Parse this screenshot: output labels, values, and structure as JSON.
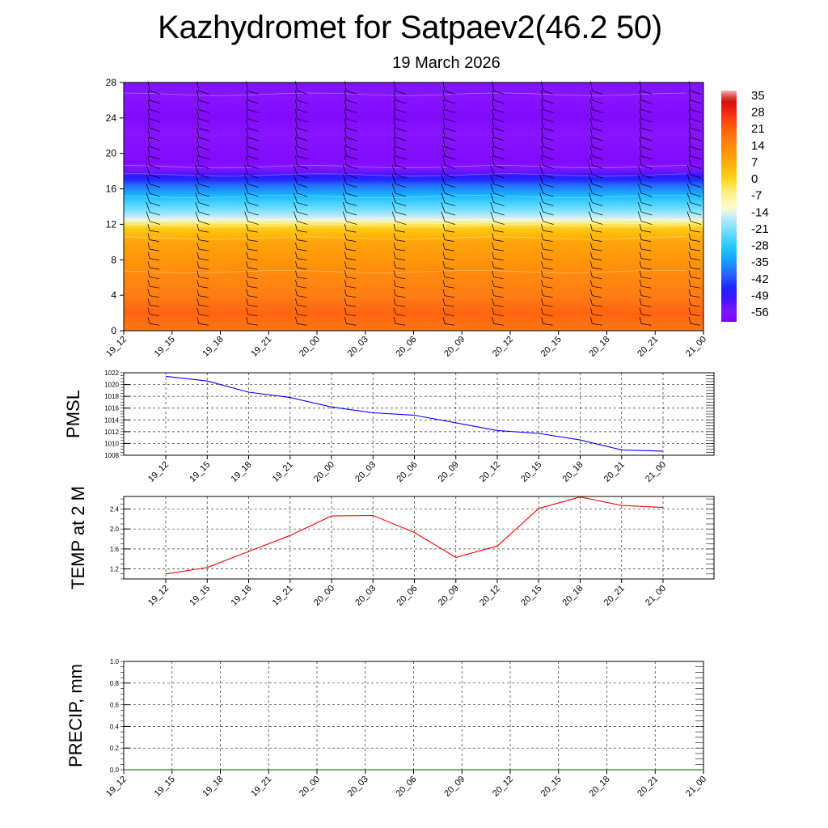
{
  "page": {
    "title": "Kazhydromet for Satpaev2(46.2 50)",
    "subtitle": "19 March 2026"
  },
  "chart_data": [
    {
      "id": "cross-section",
      "type": "heatmap",
      "title": "Kazhydromet for Satpaev2(46.2 50)",
      "subtitle": "19 March 2026",
      "x_labels": [
        "19_12",
        "19_15",
        "19_18",
        "19_21",
        "20_00",
        "20_03",
        "20_06",
        "20_09",
        "20_12",
        "20_15",
        "20_18",
        "20_21",
        "21_00"
      ],
      "ylim": [
        0,
        28
      ],
      "y_ticks": [
        0,
        4,
        8,
        12,
        16,
        20,
        24,
        28
      ],
      "colorbar_labels": [
        "35",
        "28",
        "21",
        "14",
        "7",
        "0",
        "-7",
        "-14",
        "-21",
        "-28",
        "-35",
        "-42",
        "-49",
        "-56"
      ],
      "colorbar_range": [
        -60,
        38
      ],
      "temperature_profile": [
        {
          "h": 0,
          "t": 18
        },
        {
          "h": 2,
          "t": 21
        },
        {
          "h": 4,
          "t": 17
        },
        {
          "h": 6,
          "t": 15
        },
        {
          "h": 8,
          "t": 12
        },
        {
          "h": 10,
          "t": 9
        },
        {
          "h": 11.8,
          "t": 1
        },
        {
          "h": 12.5,
          "t": -13
        },
        {
          "h": 13.5,
          "t": -20
        },
        {
          "h": 15,
          "t": -29
        },
        {
          "h": 16.5,
          "t": -40
        },
        {
          "h": 18,
          "t": -54
        },
        {
          "h": 19,
          "t": -58
        },
        {
          "h": 22,
          "t": -56
        },
        {
          "h": 24,
          "t": -58
        },
        {
          "h": 28,
          "t": -55
        }
      ],
      "overlay": "wind barbs",
      "colors": {
        "warm": "#ff8c00",
        "cold": "#8a2be2",
        "barb": "#000000"
      }
    },
    {
      "id": "pmsl",
      "type": "line",
      "ylabel": "PMSL",
      "categories": [
        "19_12",
        "19_15",
        "19_18",
        "19_21",
        "20_00",
        "20_03",
        "20_06",
        "20_09",
        "20_12",
        "20_15",
        "20_18",
        "20_21",
        "21_00"
      ],
      "values": [
        1021.4,
        1020.6,
        1018.7,
        1017.8,
        1016.2,
        1015.2,
        1014.8,
        1013.5,
        1012.2,
        1011.7,
        1010.6,
        1008.9,
        1008.7
      ],
      "ylim": [
        1008,
        1022
      ],
      "y_ticks": [
        1008,
        1010,
        1012,
        1014,
        1016,
        1018,
        1020,
        1022
      ],
      "line_color": "#0000ff"
    },
    {
      "id": "temp2m",
      "type": "line",
      "ylabel": "TEMP at 2 M",
      "categories": [
        "19_12",
        "19_15",
        "19_18",
        "19_21",
        "20_00",
        "20_03",
        "20_06",
        "20_09",
        "20_12",
        "20_15",
        "20_18",
        "20_21",
        "21_00"
      ],
      "values": [
        1.1,
        1.23,
        1.55,
        1.87,
        2.26,
        2.27,
        1.93,
        1.43,
        1.66,
        2.41,
        2.64,
        2.47,
        2.43
      ],
      "ylim": [
        1.0,
        2.65
      ],
      "y_ticks": [
        1.2,
        1.6,
        2.0,
        2.4
      ],
      "line_color": "#ff0000"
    },
    {
      "id": "precip",
      "type": "line",
      "ylabel": "PRECIP, mm",
      "categories": [
        "19_12",
        "19_15",
        "19_18",
        "19_21",
        "20_00",
        "20_03",
        "20_06",
        "20_09",
        "20_12",
        "20_15",
        "20_18",
        "20_21",
        "21_00"
      ],
      "values": [
        0,
        0,
        0,
        0,
        0,
        0,
        0,
        0,
        0,
        0,
        0,
        0,
        0
      ],
      "ylim": [
        0.0,
        1.0
      ],
      "y_ticks": [
        0.0,
        0.2,
        0.4,
        0.6,
        0.8,
        1.0
      ],
      "line_color": "#006400"
    }
  ]
}
